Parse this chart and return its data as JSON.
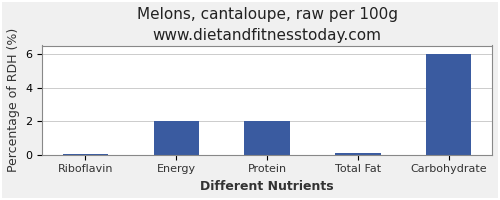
{
  "title": "Melons, cantaloupe, raw per 100g",
  "subtitle": "www.dietandfitnesstoday.com",
  "xlabel": "Different Nutrients",
  "ylabel": "Percentage of RDH (%)",
  "categories": [
    "Riboflavin",
    "Energy",
    "Protein",
    "Total Fat",
    "Carbohydrate"
  ],
  "values": [
    0.05,
    2.0,
    2.0,
    0.1,
    6.0
  ],
  "bar_color": "#3a5ba0",
  "ylim": [
    0,
    6.5
  ],
  "yticks": [
    0,
    2,
    4,
    6
  ],
  "title_fontsize": 11,
  "subtitle_fontsize": 9,
  "axis_label_fontsize": 9,
  "tick_fontsize": 8,
  "background_color": "#f0f0f0",
  "plot_bg_color": "#ffffff",
  "border_color": "#888888"
}
